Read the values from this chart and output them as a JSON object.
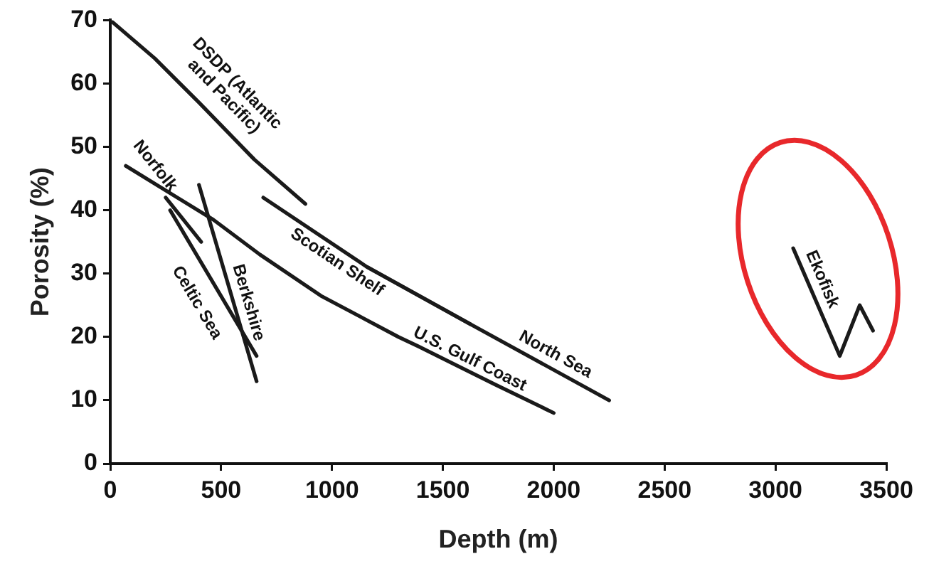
{
  "chart_data": {
    "type": "line",
    "xlabel": "Depth (m)",
    "ylabel": "Porosity (%)",
    "xlim": [
      0,
      3500
    ],
    "xticks": [
      0,
      500,
      1000,
      1500,
      2000,
      2500,
      3000,
      3500
    ],
    "ylim": [
      0,
      70
    ],
    "yticks": [
      0,
      10,
      20,
      30,
      40,
      50,
      60,
      70
    ],
    "grid": false,
    "legend": false,
    "marker": "none",
    "line_style": "solid",
    "series": [
      {
        "name": "DSDP (Atlantic and Pacific)",
        "color": "#1a1a1a",
        "x": [
          0,
          200,
          400,
          650,
          880
        ],
        "values": [
          70,
          64,
          57,
          48,
          41
        ]
      },
      {
        "name": "Norfolk",
        "color": "#1a1a1a",
        "x": [
          250,
          410
        ],
        "values": [
          42,
          35
        ]
      },
      {
        "name": "Celtic Sea",
        "color": "#1a1a1a",
        "x": [
          270,
          660
        ],
        "values": [
          40,
          17
        ]
      },
      {
        "name": "Berkshire",
        "color": "#1a1a1a",
        "x": [
          400,
          660
        ],
        "values": [
          44,
          13
        ]
      },
      {
        "name": "Scotian Shelf",
        "color": "#1a1a1a",
        "x": [
          690,
          1160,
          1625
        ],
        "values": [
          42,
          31,
          22
        ]
      },
      {
        "name": "North Sea",
        "color": "#1a1a1a",
        "x": [
          1160,
          1625,
          2250
        ],
        "values": [
          31,
          22,
          10
        ]
      },
      {
        "name": "U.S. Gulf Coast",
        "color": "#1a1a1a",
        "x": [
          70,
          465,
          675,
          950,
          1300,
          1390,
          1735,
          2000
        ],
        "values": [
          47,
          38.5,
          33,
          26.5,
          20,
          18.5,
          12.5,
          8
        ]
      },
      {
        "name": "Ekofisk",
        "color": "#1a1a1a",
        "x": [
          3080,
          3290,
          3380,
          3440
        ],
        "values": [
          34,
          17,
          25,
          21
        ]
      }
    ]
  }
}
